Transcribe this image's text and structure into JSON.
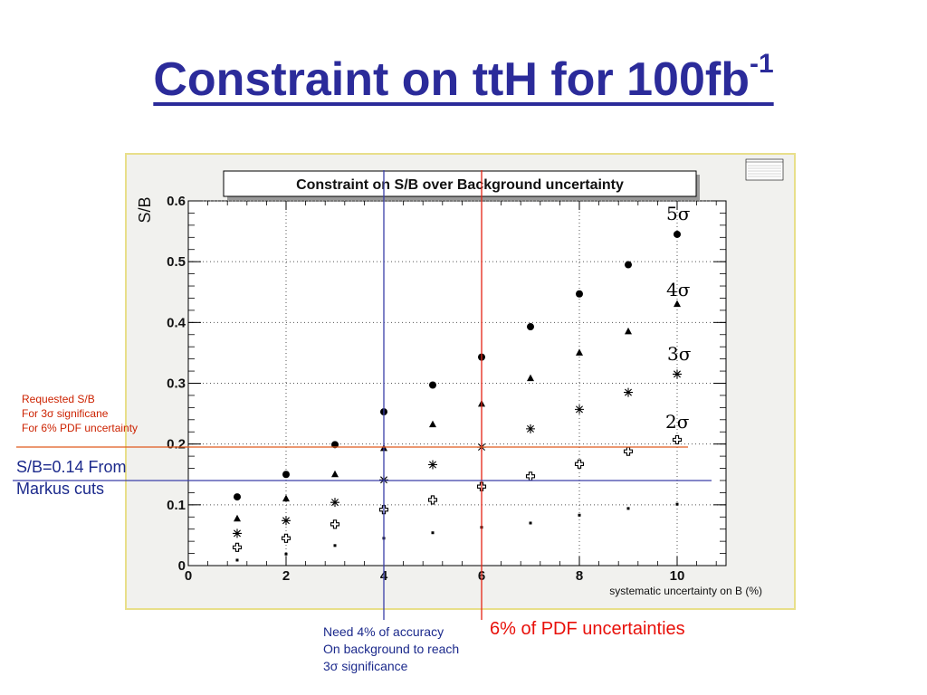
{
  "slide": {
    "title": "Constraint on ttH for 100fb",
    "title_superscript": "-1"
  },
  "annotations": {
    "requested": [
      "Requested S/B",
      "For 3σ significane",
      "For 6% PDF uncertainty"
    ],
    "sb_markus": [
      "S/B=0.14 From",
      "Markus cuts"
    ],
    "accuracy": [
      "Need 4% of accuracy",
      "On background to reach",
      "3σ significance"
    ],
    "pdf": "6% of PDF uncertainties"
  },
  "colors": {
    "title": "#2b2b9a",
    "frame_bg": "#f1f1ee",
    "frame_border": "#e8df8a",
    "blue_line": "#3a3fa8",
    "red_line": "#e52414",
    "orange_line": "#e05a1e"
  },
  "chart_data": {
    "type": "scatter",
    "title": "Constraint on S/B over Background uncertainty",
    "xlabel": "systematic uncertainty on B (%)",
    "ylabel": "S/B",
    "xlim": [
      0,
      11
    ],
    "ylim": [
      0,
      0.6
    ],
    "xticks": [
      "0",
      "2",
      "4",
      "6",
      "8",
      "10"
    ],
    "yticks": [
      "0",
      "0.1",
      "0.2",
      "0.3",
      "0.4",
      "0.5",
      "0.6"
    ],
    "grid": true,
    "x": [
      1,
      2,
      3,
      4,
      5,
      6,
      7,
      8,
      9,
      10
    ],
    "series": [
      {
        "name": "5σ",
        "marker": "circle",
        "values": [
          0.113,
          0.15,
          0.199,
          0.253,
          0.297,
          0.343,
          0.393,
          0.447,
          0.495,
          0.545
        ]
      },
      {
        "name": "4σ",
        "marker": "triangle",
        "values": [
          0.077,
          0.11,
          0.15,
          0.193,
          0.232,
          0.266,
          0.308,
          0.35,
          0.385,
          0.43
        ]
      },
      {
        "name": "3σ",
        "marker": "asterisk",
        "values": [
          0.053,
          0.074,
          0.104,
          0.141,
          0.166,
          0.195,
          0.225,
          0.257,
          0.285,
          0.315
        ]
      },
      {
        "name": "2σ",
        "marker": "cross",
        "values": [
          0.03,
          0.045,
          0.068,
          0.092,
          0.108,
          0.13,
          0.147,
          0.167,
          0.188,
          0.207
        ]
      },
      {
        "name": "",
        "marker": "dot",
        "values": [
          0.009,
          0.019,
          0.033,
          0.045,
          0.054,
          0.063,
          0.07,
          0.083,
          0.094,
          0.101
        ]
      }
    ],
    "reference_lines": [
      {
        "axis": "x",
        "value": 4,
        "color": "#3a3fa8"
      },
      {
        "axis": "x",
        "value": 6,
        "color": "#e52414"
      },
      {
        "axis": "y",
        "value": 0.195,
        "color": "#e05a1e"
      },
      {
        "axis": "y",
        "value": 0.14,
        "color": "#3a3fa8"
      }
    ]
  }
}
